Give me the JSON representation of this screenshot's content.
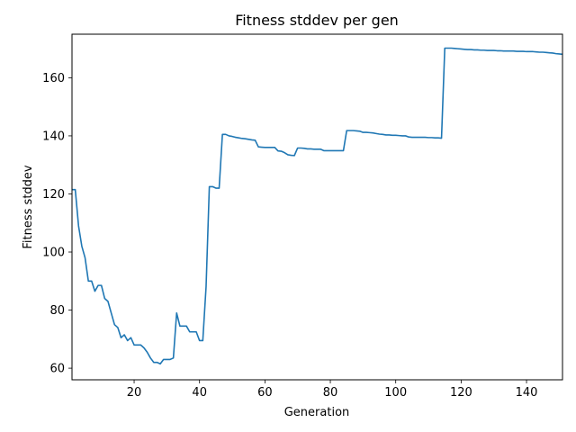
{
  "chart_data": {
    "type": "line",
    "title": "Fitness stddev per gen",
    "xlabel": "Generation",
    "ylabel": "Fitness stddev",
    "xlim": [
      1,
      151
    ],
    "ylim": [
      56,
      175
    ],
    "xticks": [
      20,
      40,
      60,
      80,
      100,
      120,
      140
    ],
    "yticks": [
      60,
      80,
      100,
      120,
      140,
      160
    ],
    "grid": false,
    "line_color": "#1f77b4",
    "series": [
      {
        "x": [
          1,
          2,
          3,
          4,
          5,
          6,
          7,
          8,
          9,
          10,
          11,
          12,
          13,
          14,
          15,
          16,
          17,
          18,
          19,
          20,
          21,
          22,
          23,
          24,
          25,
          26,
          27,
          28,
          29,
          30,
          31,
          32,
          33,
          34,
          35,
          36,
          37,
          38,
          39,
          40,
          41,
          42,
          43,
          44,
          45,
          46,
          47,
          48,
          49,
          50,
          51,
          52,
          53,
          54,
          55,
          56,
          57,
          58,
          59,
          60,
          61,
          62,
          63,
          64,
          65,
          66,
          67,
          68,
          69,
          70,
          71,
          72,
          73,
          74,
          75,
          76,
          77,
          78,
          79,
          80,
          81,
          82,
          83,
          84,
          85,
          86,
          87,
          88,
          89,
          90,
          91,
          92,
          93,
          94,
          95,
          96,
          97,
          98,
          99,
          100,
          101,
          102,
          103,
          104,
          105,
          106,
          107,
          108,
          109,
          110,
          111,
          112,
          113,
          114,
          115,
          116,
          117,
          118,
          119,
          120,
          121,
          122,
          123,
          124,
          125,
          126,
          127,
          128,
          129,
          130,
          131,
          132,
          133,
          134,
          135,
          136,
          137,
          138,
          139,
          140,
          141,
          142,
          143,
          144,
          145,
          146,
          147,
          148,
          149,
          150,
          151
        ],
        "y": [
          121.5,
          121.5,
          109,
          102,
          98,
          90,
          90,
          86.5,
          88.5,
          88.5,
          84,
          83,
          79,
          75,
          74,
          70.5,
          71.5,
          69.5,
          70.5,
          68,
          68,
          68,
          67,
          65.5,
          63.5,
          62,
          62,
          61.5,
          63,
          63,
          63,
          63.5,
          79,
          74.5,
          74.5,
          74.5,
          72.5,
          72.5,
          72.5,
          69.5,
          69.5,
          88,
          122.5,
          122.5,
          122,
          122,
          140.5,
          140.5,
          140,
          139.8,
          139.5,
          139.3,
          139.1,
          139,
          138.8,
          138.6,
          138.5,
          136.2,
          136.1,
          136,
          136,
          136,
          136,
          134.8,
          134.7,
          134.2,
          133.5,
          133.3,
          133.2,
          135.8,
          135.8,
          135.7,
          135.5,
          135.5,
          135.4,
          135.4,
          135.4,
          134.9,
          134.9,
          134.9,
          134.9,
          134.9,
          134.9,
          134.9,
          141.8,
          141.8,
          141.8,
          141.7,
          141.6,
          141.2,
          141.2,
          141.1,
          141,
          140.8,
          140.6,
          140.5,
          140.3,
          140.3,
          140.2,
          140.2,
          140.1,
          140,
          140,
          139.6,
          139.5,
          139.5,
          139.5,
          139.5,
          139.5,
          139.4,
          139.4,
          139.3,
          139.3,
          139.2,
          170.2,
          170.2,
          170.2,
          170.1,
          170,
          169.9,
          169.8,
          169.7,
          169.7,
          169.6,
          169.6,
          169.5,
          169.5,
          169.4,
          169.4,
          169.4,
          169.3,
          169.3,
          169.2,
          169.2,
          169.2,
          169.2,
          169.1,
          169.1,
          169.1,
          169,
          169,
          169,
          168.9,
          168.8,
          168.8,
          168.7,
          168.6,
          168.5,
          168.3,
          168.2,
          168.1
        ]
      }
    ]
  }
}
